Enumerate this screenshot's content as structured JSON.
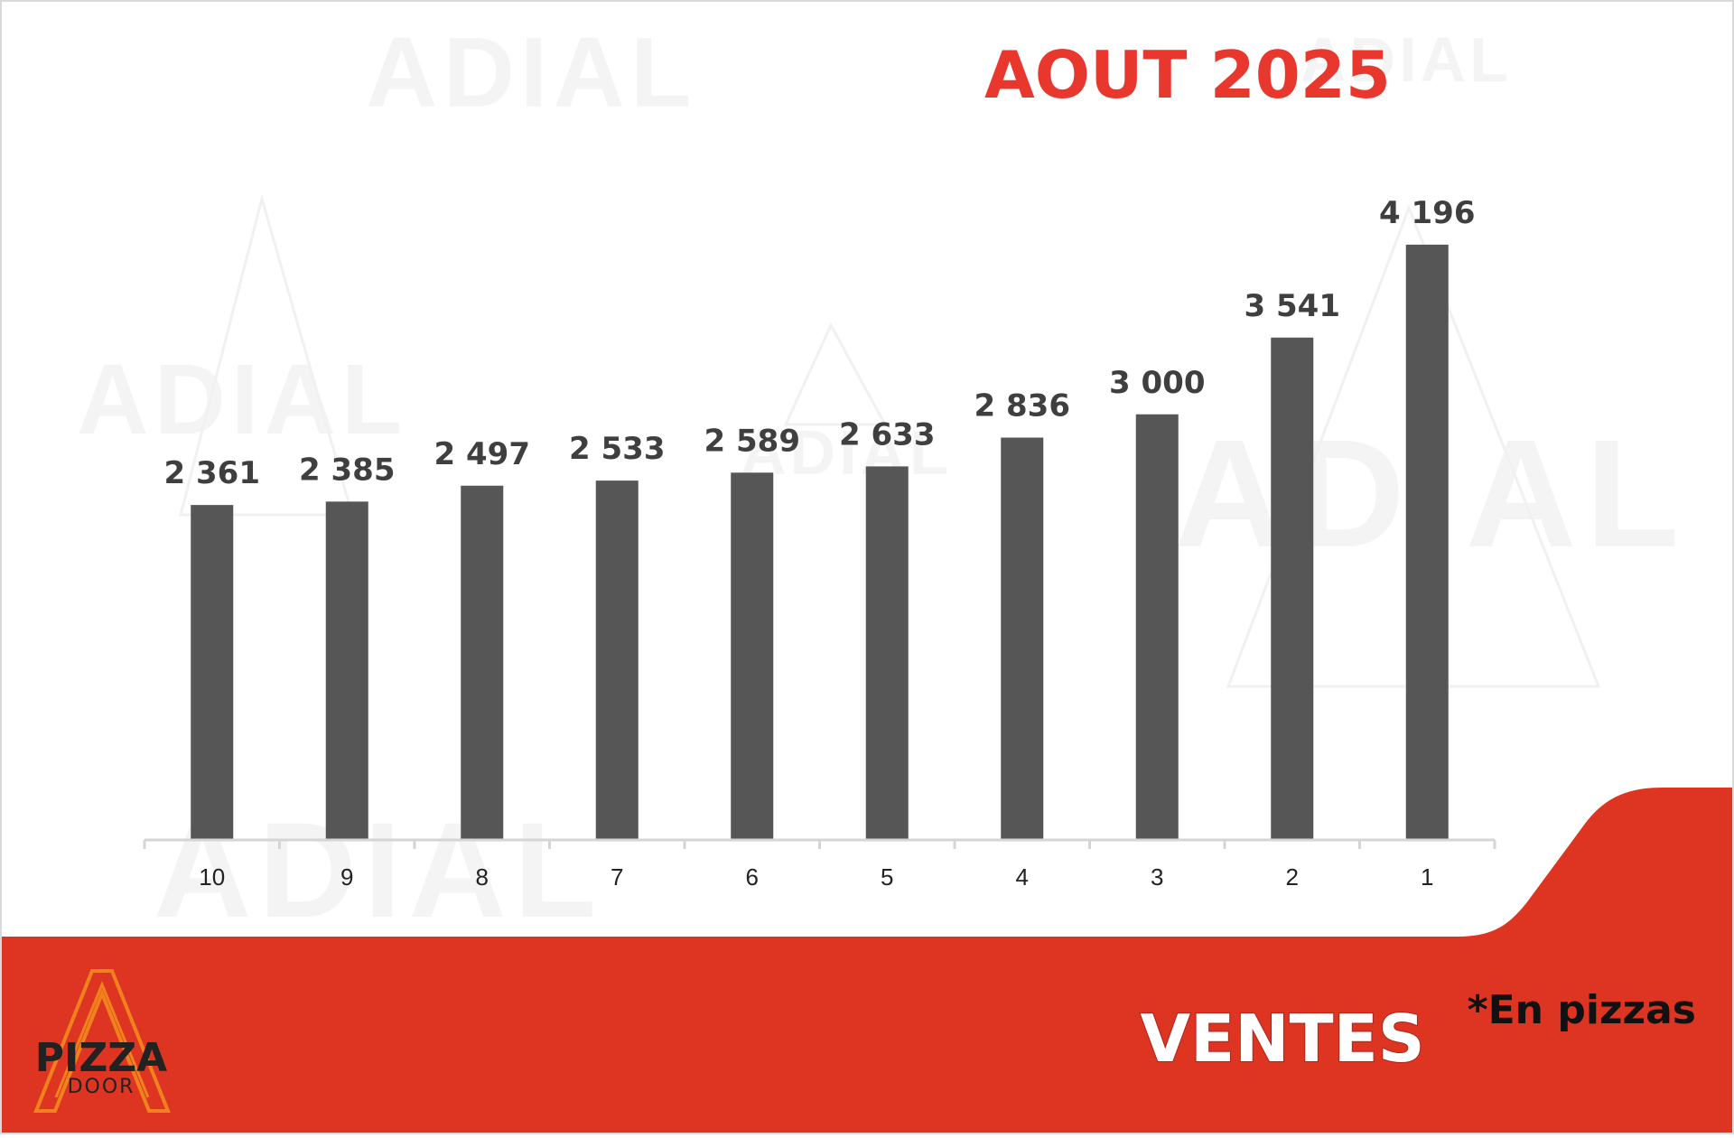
{
  "title": "AOUT 2025",
  "watermark": "ADIAL",
  "footer": {
    "label": "VENTES",
    "note": "*En pizzas"
  },
  "logo": {
    "line1": "PIZZA",
    "line2": "DOOR"
  },
  "colors": {
    "title": "#e8382e",
    "bar": "#575656",
    "value_label": "#3f3f3f",
    "footer_red": "#dd3522",
    "axis": "#d5d5d5",
    "logo_orange": "#f0821e"
  },
  "chart_data": {
    "type": "bar",
    "title": "AOUT 2025",
    "categories": [
      "10",
      "9",
      "8",
      "7",
      "6",
      "5",
      "4",
      "3",
      "2",
      "1"
    ],
    "values": [
      2361,
      2385,
      2497,
      2533,
      2589,
      2633,
      2836,
      3000,
      3541,
      4196
    ],
    "value_labels": [
      "2 361",
      "2 385",
      "2 497",
      "2 533",
      "2 589",
      "2 633",
      "2 836",
      "3 000",
      "3 541",
      "4 196"
    ],
    "ylim": [
      0,
      4800
    ],
    "grid": false,
    "legend": "none"
  }
}
